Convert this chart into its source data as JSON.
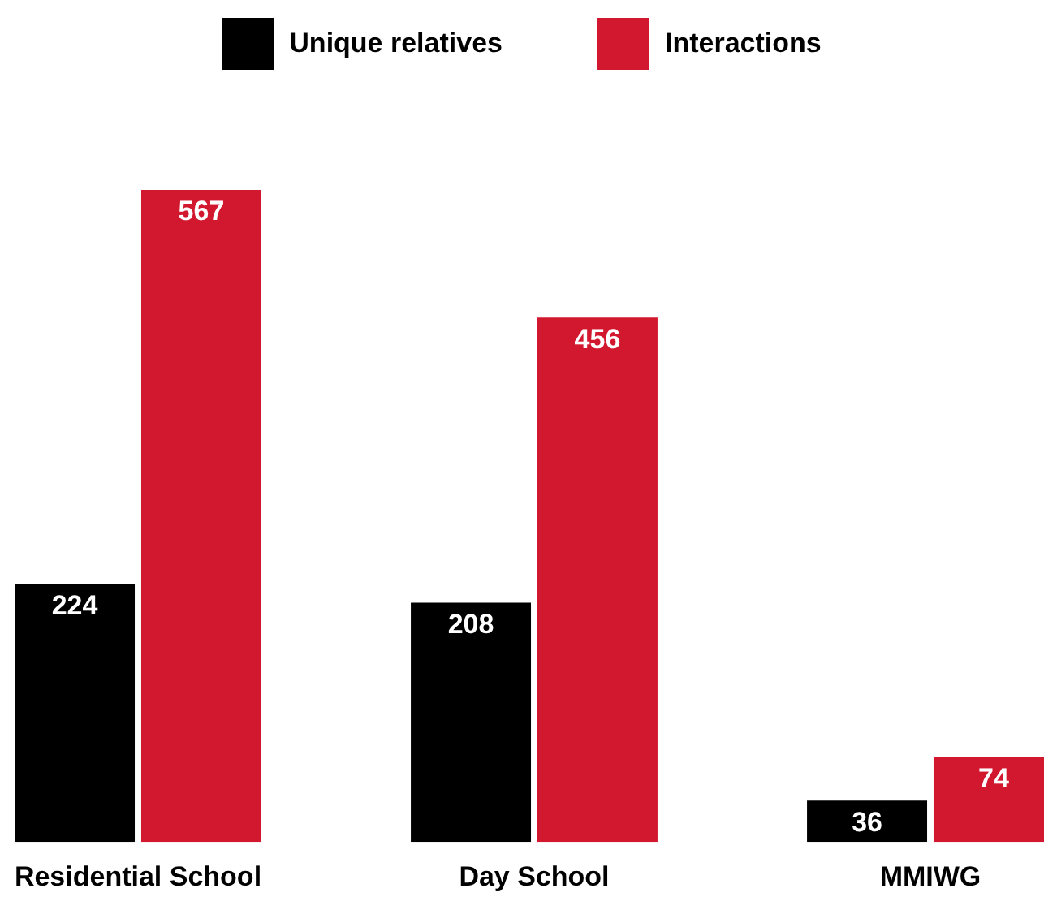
{
  "chart_data": {
    "type": "bar",
    "categories": [
      "Residential School",
      "Day School",
      "MMIWG"
    ],
    "series": [
      {
        "name": "Unique relatives",
        "color": "#000000",
        "values": [
          224,
          208,
          36
        ]
      },
      {
        "name": "Interactions",
        "color": "#d2182f",
        "values": [
          567,
          456,
          74
        ]
      }
    ],
    "data_labels": true,
    "legend": "top",
    "grid": false
  }
}
